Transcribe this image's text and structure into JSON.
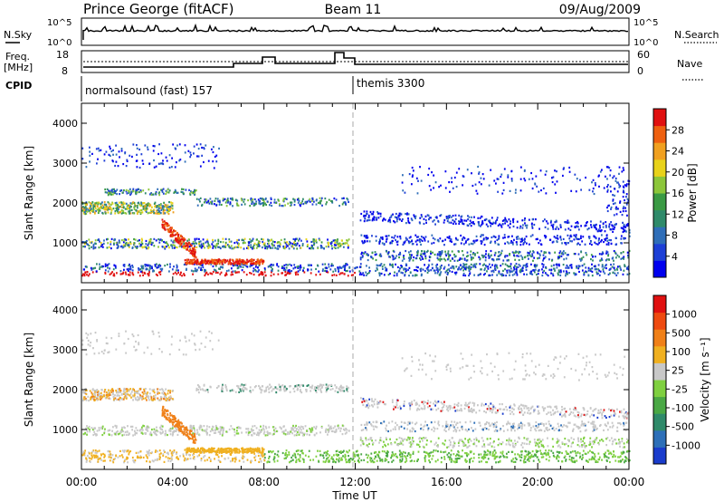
{
  "header": {
    "station": "Prince George (fitACF)",
    "beam": "Beam 11",
    "date": "09/Aug/2009"
  },
  "top_panels": {
    "nsky_label": "N.Sky",
    "nsky_ticks": [
      "10^5",
      "10^0"
    ],
    "nsearch_label": "N.Search",
    "nsearch_ticks": [
      "10^5",
      "10^0"
    ],
    "freq_label": "Freq.",
    "freq_unit": "[MHz]",
    "freq_ticks": [
      "18",
      "8"
    ],
    "nave_label": "Nave",
    "nave_ticks": [
      "60",
      "0"
    ],
    "cpid_label": "CPID",
    "cpid_segments": [
      "normalsound (fast) 157",
      "themis 3300"
    ]
  },
  "chart_data": [
    {
      "type": "heatmap",
      "name": "power",
      "ylabel": "Slant Range [km]",
      "ylim": [
        0,
        4500
      ],
      "yticks": [
        "1000",
        "2000",
        "3000",
        "4000"
      ],
      "xlabel": "Time UT",
      "xlim": [
        "00:00",
        "24:00"
      ],
      "xticks": [
        "00:00",
        "04:00",
        "08:00",
        "12:00",
        "16:00",
        "20:00",
        "00:00"
      ],
      "colorbar": {
        "label": "Power [dB]",
        "ticks": [
          "28",
          "24",
          "20",
          "16",
          "12",
          "8",
          "4"
        ],
        "colors": [
          "#0000ee",
          "#1d3fd6",
          "#2f6eb8",
          "#2f8a6a",
          "#3a9a44",
          "#8cc63a",
          "#e8d21a",
          "#f0a020",
          "#ee6010",
          "#e01010"
        ]
      },
      "mode_change_x": "11:48"
    },
    {
      "type": "heatmap",
      "name": "velocity",
      "ylabel": "Slant Range [km]",
      "ylim": [
        0,
        4500
      ],
      "yticks": [
        "1000",
        "2000",
        "3000",
        "4000"
      ],
      "xlabel": "Time UT",
      "xlim": [
        "00:00",
        "24:00"
      ],
      "xticks": [
        "00:00",
        "04:00",
        "08:00",
        "12:00",
        "16:00",
        "20:00",
        "00:00"
      ],
      "colorbar": {
        "label": "Velocity [m s⁻¹]",
        "ticks": [
          "1000",
          "500",
          "100",
          "25",
          "-25",
          "-100",
          "-500",
          "-1000"
        ],
        "colors": [
          "#1a3ccc",
          "#2d6fb8",
          "#2f8a6a",
          "#4aa845",
          "#7fd040",
          "#c8c8c8",
          "#f0b020",
          "#f08018",
          "#ee4a10",
          "#e01010"
        ]
      },
      "mode_change_x": "11:48"
    }
  ],
  "time_axis_label": "Time UT"
}
